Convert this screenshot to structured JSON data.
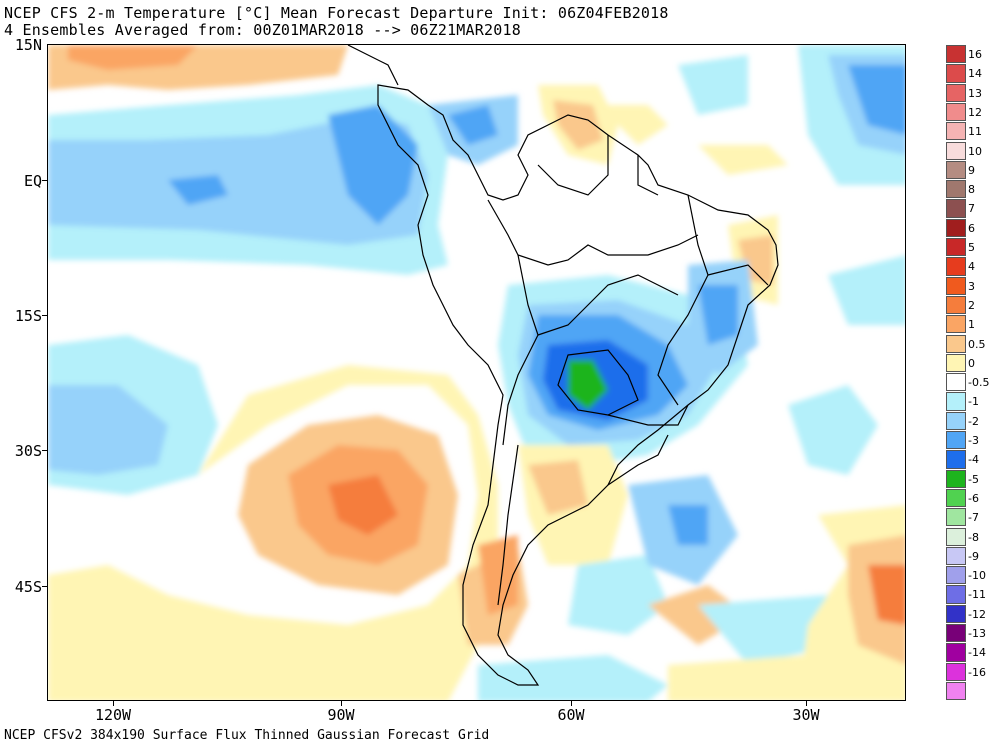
{
  "title_line1": "NCEP CFS 2-m Temperature [°C] Mean Forecast Departure Init: 06Z04FEB2018",
  "title_line2": "4 Ensembles Averaged from: 00Z01MAR2018 --> 06Z21MAR2018",
  "footer": "NCEP CFSv2 384x190 Surface Flux Thinned Gaussian Forecast Grid",
  "lat_labels": [
    "15N",
    "EQ",
    "15S",
    "30S",
    "45S"
  ],
  "lon_labels": [
    "120W",
    "90W",
    "60W",
    "30W"
  ],
  "legend": {
    "items": [
      {
        "label": "16",
        "color": "#c83232"
      },
      {
        "label": "14",
        "color": "#dc4b4b"
      },
      {
        "label": "13",
        "color": "#e66464"
      },
      {
        "label": "12",
        "color": "#f08c8c"
      },
      {
        "label": "11",
        "color": "#f5b4b4"
      },
      {
        "label": "10",
        "color": "#f8dcdc"
      },
      {
        "label": "9",
        "color": "#b48c82"
      },
      {
        "label": "8",
        "color": "#a0786e"
      },
      {
        "label": "7",
        "color": "#8c5050"
      },
      {
        "label": "6",
        "color": "#a01e1e"
      },
      {
        "label": "5",
        "color": "#c82828"
      },
      {
        "label": "4",
        "color": "#e63c1e"
      },
      {
        "label": "3",
        "color": "#f05a1e"
      },
      {
        "label": "2",
        "color": "#f57d3c"
      },
      {
        "label": "1",
        "color": "#faa564"
      },
      {
        "label": "0.5",
        "color": "#fac88c"
      },
      {
        "label": "0",
        "color": "#fff5b4"
      },
      {
        "label": "-0.5",
        "color": "#ffffff"
      },
      {
        "label": "-1",
        "color": "#b4f0fa"
      },
      {
        "label": "-2",
        "color": "#96d2fa"
      },
      {
        "label": "-3",
        "color": "#50a5f5"
      },
      {
        "label": "-4",
        "color": "#1e6eeb"
      },
      {
        "label": "-5",
        "color": "#1eb41e"
      },
      {
        "label": "-6",
        "color": "#50d250"
      },
      {
        "label": "-7",
        "color": "#a0e6a0"
      },
      {
        "label": "-8",
        "color": "#dcf0dc"
      },
      {
        "label": "-9",
        "color": "#c8c8f5"
      },
      {
        "label": "-10",
        "color": "#a0a0eb"
      },
      {
        "label": "-11",
        "color": "#6e6ee6"
      },
      {
        "label": "-12",
        "color": "#3232c8"
      },
      {
        "label": "-13",
        "color": "#780078"
      },
      {
        "label": "-14",
        "color": "#a000a0"
      },
      {
        "label": "-16",
        "color": "#dc32dc"
      },
      {
        "label": "",
        "color": "#f082f0"
      }
    ]
  }
}
